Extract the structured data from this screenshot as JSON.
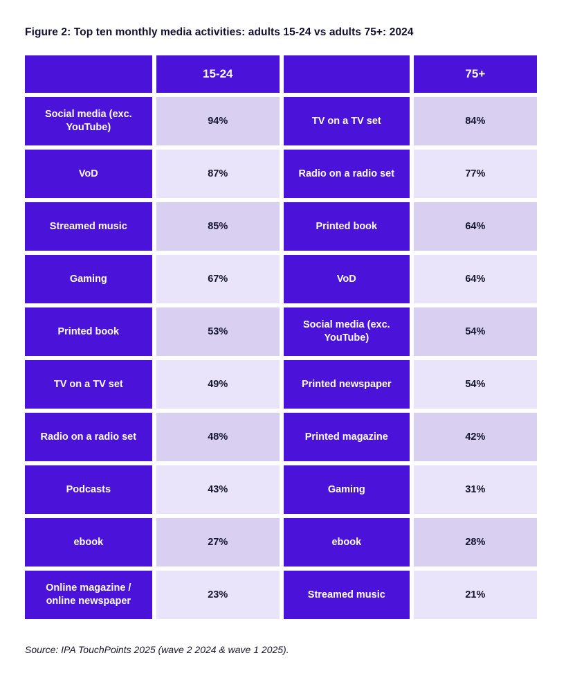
{
  "figure": {
    "title": "Figure 2: Top ten monthly media activities: adults 15-24 vs adults 75+: 2024",
    "source": "Source: IPA TouchPoints 2025 (wave 2 2024 & wave 1 2025)."
  },
  "colors": {
    "purple": "#4b12d9",
    "lavender-dark": "#d8cff1",
    "lavender-light": "#e9e4f9",
    "text-dark": "#15152e",
    "title": "#0e0e2e"
  },
  "chart_data": {
    "type": "table",
    "title": "Figure 2: Top ten monthly media activities: adults 15-24 vs adults 75+: 2024",
    "groups": [
      "15-24",
      "75+"
    ],
    "unit": "%",
    "series": [
      {
        "name": "15-24",
        "categories": [
          "Social media (exc. YouTube)",
          "VoD",
          "Streamed music",
          "Gaming",
          "Printed book",
          "TV on a TV set",
          "Radio on a radio set",
          "Podcasts",
          "ebook",
          "Online magazine / online newspaper"
        ],
        "values": [
          94,
          87,
          85,
          67,
          53,
          49,
          48,
          43,
          27,
          23
        ]
      },
      {
        "name": "75+",
        "categories": [
          "TV on a TV set",
          "Radio on a radio set",
          "Printed book",
          "VoD",
          "Social media (exc. YouTube)",
          "Printed newspaper",
          "Printed magazine",
          "Gaming",
          "ebook",
          "Streamed music"
        ],
        "values": [
          84,
          77,
          64,
          64,
          54,
          54,
          42,
          31,
          28,
          21
        ]
      }
    ],
    "rows": [
      {
        "left_label": "Social media (exc. YouTube)",
        "left_value": "94%",
        "right_label": "TV on a TV set",
        "right_value": "84%"
      },
      {
        "left_label": "VoD",
        "left_value": "87%",
        "right_label": "Radio on a radio set",
        "right_value": "77%"
      },
      {
        "left_label": "Streamed music",
        "left_value": "85%",
        "right_label": "Printed book",
        "right_value": "64%"
      },
      {
        "left_label": "Gaming",
        "left_value": "67%",
        "right_label": "VoD",
        "right_value": "64%"
      },
      {
        "left_label": "Printed book",
        "left_value": "53%",
        "right_label": "Social media (exc. YouTube)",
        "right_value": "54%"
      },
      {
        "left_label": "TV on a TV set",
        "left_value": "49%",
        "right_label": "Printed newspaper",
        "right_value": "54%"
      },
      {
        "left_label": "Radio on a radio set",
        "left_value": "48%",
        "right_label": "Printed magazine",
        "right_value": "42%"
      },
      {
        "left_label": "Podcasts",
        "left_value": "43%",
        "right_label": "Gaming",
        "right_value": "31%"
      },
      {
        "left_label": "ebook",
        "left_value": "27%",
        "right_label": "ebook",
        "right_value": "28%"
      },
      {
        "left_label": "Online magazine / online newspaper",
        "left_value": "23%",
        "right_label": "Streamed music",
        "right_value": "21%"
      }
    ]
  }
}
